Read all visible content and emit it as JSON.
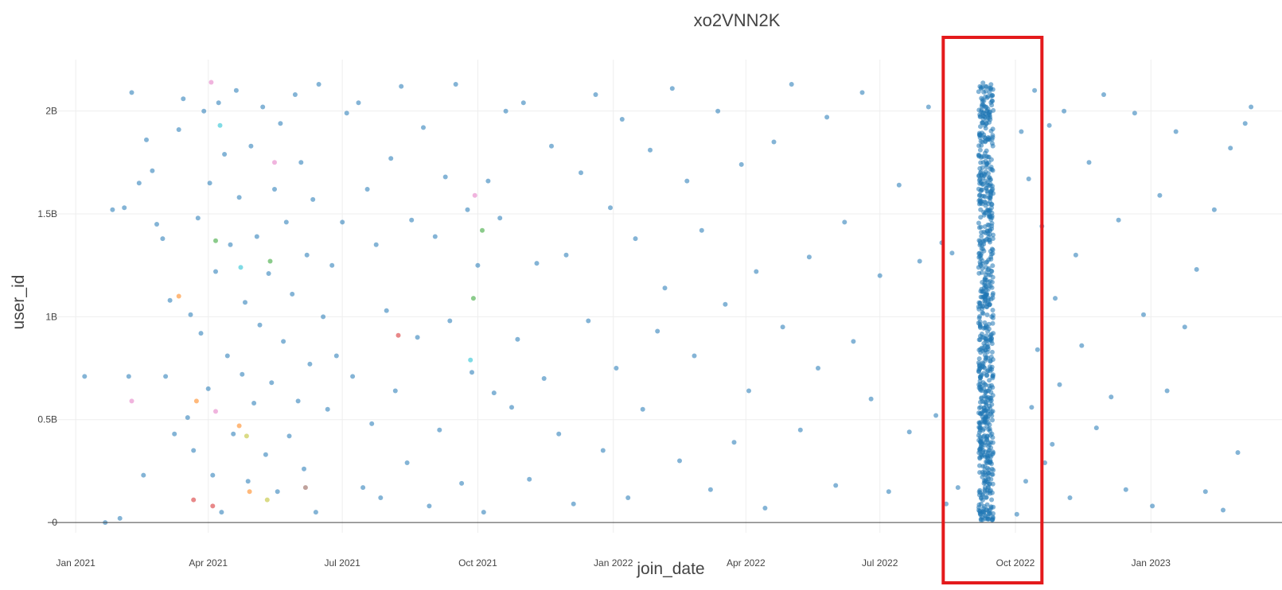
{
  "chart_data": {
    "type": "scatter",
    "title": "xo2VNN2K",
    "xlabel": "join_date",
    "ylabel": "user_id",
    "x_range": [
      "2020-12-13",
      "2023-03-31"
    ],
    "y_range": [
      -0.05,
      2.25
    ],
    "y_unit": "billions",
    "grid": true,
    "x_ticks": [
      {
        "date": "2021-01-01",
        "label": "Jan 2021"
      },
      {
        "date": "2021-04-01",
        "label": "Apr 2021"
      },
      {
        "date": "2021-07-01",
        "label": "Jul 2021"
      },
      {
        "date": "2021-10-01",
        "label": "Oct 2021"
      },
      {
        "date": "2022-01-01",
        "label": "Jan 2022"
      },
      {
        "date": "2022-04-01",
        "label": "Apr 2022"
      },
      {
        "date": "2022-07-01",
        "label": "Jul 2022"
      },
      {
        "date": "2022-10-01",
        "label": "Oct 2022"
      },
      {
        "date": "2023-01-01",
        "label": "Jan 2023"
      }
    ],
    "y_ticks": [
      {
        "value": 0,
        "label": "0"
      },
      {
        "value": 0.5,
        "label": "0.5B"
      },
      {
        "value": 1.0,
        "label": "1B"
      },
      {
        "value": 1.5,
        "label": "1.5B"
      },
      {
        "value": 2.0,
        "label": "2B"
      }
    ],
    "colors": {
      "main_series": "#1f77b4",
      "marker_opacity": 0.55,
      "highlight_box": "#e41a1c",
      "grid": "#eeeeee",
      "zero_line": "#444444"
    },
    "highlight_box": {
      "x_start": "2022-08-13",
      "x_end": "2022-10-19"
    },
    "series": [
      {
        "color": "#1f77b4",
        "points": [
          [
            "2021-01-07",
            0.71
          ],
          [
            "2021-01-21",
            0.0
          ],
          [
            "2021-01-26",
            1.52
          ],
          [
            "2021-01-31",
            0.02
          ],
          [
            "2021-02-03",
            1.53
          ],
          [
            "2021-02-06",
            0.71
          ],
          [
            "2021-02-08",
            2.09
          ],
          [
            "2021-02-13",
            1.65
          ],
          [
            "2021-02-16",
            0.23
          ],
          [
            "2021-02-18",
            1.86
          ],
          [
            "2021-02-22",
            1.71
          ],
          [
            "2021-02-25",
            1.45
          ],
          [
            "2021-03-01",
            1.38
          ],
          [
            "2021-03-03",
            0.71
          ],
          [
            "2021-03-06",
            1.08
          ],
          [
            "2021-03-09",
            0.43
          ],
          [
            "2021-03-12",
            1.91
          ],
          [
            "2021-03-15",
            2.06
          ],
          [
            "2021-03-18",
            0.51
          ],
          [
            "2021-03-20",
            1.01
          ],
          [
            "2021-03-22",
            0.35
          ],
          [
            "2021-03-25",
            1.48
          ],
          [
            "2021-03-27",
            0.92
          ],
          [
            "2021-03-29",
            2.0
          ],
          [
            "2021-04-01",
            0.65
          ],
          [
            "2021-04-02",
            1.65
          ],
          [
            "2021-04-04",
            0.23
          ],
          [
            "2021-04-06",
            1.22
          ],
          [
            "2021-04-08",
            2.04
          ],
          [
            "2021-04-10",
            0.05
          ],
          [
            "2021-04-12",
            1.79
          ],
          [
            "2021-04-14",
            0.81
          ],
          [
            "2021-04-16",
            1.35
          ],
          [
            "2021-04-18",
            0.43
          ],
          [
            "2021-04-20",
            2.1
          ],
          [
            "2021-04-22",
            1.58
          ],
          [
            "2021-04-24",
            0.72
          ],
          [
            "2021-04-26",
            1.07
          ],
          [
            "2021-04-28",
            0.2
          ],
          [
            "2021-04-30",
            1.83
          ],
          [
            "2021-05-02",
            0.58
          ],
          [
            "2021-05-04",
            1.39
          ],
          [
            "2021-05-06",
            0.96
          ],
          [
            "2021-05-08",
            2.02
          ],
          [
            "2021-05-10",
            0.33
          ],
          [
            "2021-05-12",
            1.21
          ],
          [
            "2021-05-14",
            0.68
          ],
          [
            "2021-05-16",
            1.62
          ],
          [
            "2021-05-18",
            0.15
          ],
          [
            "2021-05-20",
            1.94
          ],
          [
            "2021-05-22",
            0.88
          ],
          [
            "2021-05-24",
            1.46
          ],
          [
            "2021-05-26",
            0.42
          ],
          [
            "2021-05-28",
            1.11
          ],
          [
            "2021-05-30",
            2.08
          ],
          [
            "2021-06-01",
            0.59
          ],
          [
            "2021-06-03",
            1.75
          ],
          [
            "2021-06-05",
            0.26
          ],
          [
            "2021-06-07",
            1.3
          ],
          [
            "2021-06-09",
            0.77
          ],
          [
            "2021-06-11",
            1.57
          ],
          [
            "2021-06-13",
            0.05
          ],
          [
            "2021-06-15",
            2.13
          ],
          [
            "2021-06-18",
            1.0
          ],
          [
            "2021-06-21",
            0.55
          ],
          [
            "2021-06-24",
            1.25
          ],
          [
            "2021-06-27",
            0.81
          ],
          [
            "2021-07-01",
            1.46
          ],
          [
            "2021-07-04",
            1.99
          ],
          [
            "2021-07-08",
            0.71
          ],
          [
            "2021-07-12",
            2.04
          ],
          [
            "2021-07-15",
            0.17
          ],
          [
            "2021-07-18",
            1.62
          ],
          [
            "2021-07-21",
            0.48
          ],
          [
            "2021-07-24",
            1.35
          ],
          [
            "2021-07-27",
            0.12
          ],
          [
            "2021-07-31",
            1.03
          ],
          [
            "2021-08-03",
            1.77
          ],
          [
            "2021-08-06",
            0.64
          ],
          [
            "2021-08-10",
            2.12
          ],
          [
            "2021-08-14",
            0.29
          ],
          [
            "2021-08-17",
            1.47
          ],
          [
            "2021-08-21",
            0.9
          ],
          [
            "2021-08-25",
            1.92
          ],
          [
            "2021-08-29",
            0.08
          ],
          [
            "2021-09-02",
            1.39
          ],
          [
            "2021-09-05",
            0.45
          ],
          [
            "2021-09-09",
            1.68
          ],
          [
            "2021-09-12",
            0.98
          ],
          [
            "2021-09-16",
            2.13
          ],
          [
            "2021-09-20",
            0.19
          ],
          [
            "2021-09-24",
            1.52
          ],
          [
            "2021-09-27",
            0.73
          ],
          [
            "2021-10-01",
            1.25
          ],
          [
            "2021-10-05",
            0.05
          ],
          [
            "2021-10-08",
            1.66
          ],
          [
            "2021-10-12",
            0.63
          ],
          [
            "2021-10-16",
            1.48
          ],
          [
            "2021-10-20",
            2.0
          ],
          [
            "2021-10-24",
            0.56
          ],
          [
            "2021-10-28",
            0.89
          ],
          [
            "2021-11-01",
            2.04
          ],
          [
            "2021-11-05",
            0.21
          ],
          [
            "2021-11-10",
            1.26
          ],
          [
            "2021-11-15",
            0.7
          ],
          [
            "2021-11-20",
            1.83
          ],
          [
            "2021-11-25",
            0.43
          ],
          [
            "2021-11-30",
            1.3
          ],
          [
            "2021-12-05",
            0.09
          ],
          [
            "2021-12-10",
            1.7
          ],
          [
            "2021-12-15",
            0.98
          ],
          [
            "2021-12-20",
            2.08
          ],
          [
            "2021-12-25",
            0.35
          ],
          [
            "2021-12-30",
            1.53
          ],
          [
            "2022-01-03",
            0.75
          ],
          [
            "2022-01-07",
            1.96
          ],
          [
            "2022-01-11",
            0.12
          ],
          [
            "2022-01-16",
            1.38
          ],
          [
            "2022-01-21",
            0.55
          ],
          [
            "2022-01-26",
            1.81
          ],
          [
            "2022-01-31",
            0.93
          ],
          [
            "2022-02-05",
            1.14
          ],
          [
            "2022-02-10",
            2.11
          ],
          [
            "2022-02-15",
            0.3
          ],
          [
            "2022-02-20",
            1.66
          ],
          [
            "2022-02-25",
            0.81
          ],
          [
            "2022-03-02",
            1.42
          ],
          [
            "2022-03-08",
            0.16
          ],
          [
            "2022-03-13",
            2.0
          ],
          [
            "2022-03-18",
            1.06
          ],
          [
            "2022-03-24",
            0.39
          ],
          [
            "2022-03-29",
            1.74
          ],
          [
            "2022-04-03",
            0.64
          ],
          [
            "2022-04-08",
            1.22
          ],
          [
            "2022-04-14",
            0.07
          ],
          [
            "2022-04-20",
            1.85
          ],
          [
            "2022-04-26",
            0.95
          ],
          [
            "2022-05-02",
            2.13
          ],
          [
            "2022-05-08",
            0.45
          ],
          [
            "2022-05-14",
            1.29
          ],
          [
            "2022-05-20",
            0.75
          ],
          [
            "2022-05-26",
            1.97
          ],
          [
            "2022-06-01",
            0.18
          ],
          [
            "2022-06-07",
            1.46
          ],
          [
            "2022-06-13",
            0.88
          ],
          [
            "2022-06-19",
            2.09
          ],
          [
            "2022-06-25",
            0.6
          ],
          [
            "2022-07-01",
            1.2
          ],
          [
            "2022-07-07",
            0.15
          ],
          [
            "2022-07-14",
            1.64
          ],
          [
            "2022-07-21",
            0.44
          ],
          [
            "2022-07-28",
            1.27
          ],
          [
            "2022-08-03",
            2.02
          ],
          [
            "2022-08-08",
            0.52
          ],
          [
            "2022-08-12",
            1.36
          ],
          [
            "2022-08-15",
            0.09
          ],
          [
            "2022-08-19",
            1.31
          ],
          [
            "2022-08-23",
            0.17
          ],
          [
            "2022-10-02",
            0.04
          ],
          [
            "2022-10-05",
            1.9
          ],
          [
            "2022-10-08",
            0.2
          ],
          [
            "2022-10-10",
            1.67
          ],
          [
            "2022-10-12",
            0.56
          ],
          [
            "2022-10-14",
            2.1
          ],
          [
            "2022-10-16",
            0.84
          ],
          [
            "2022-10-19",
            1.44
          ],
          [
            "2022-10-21",
            0.29
          ],
          [
            "2022-10-24",
            1.93
          ],
          [
            "2022-10-26",
            0.38
          ],
          [
            "2022-10-28",
            1.09
          ],
          [
            "2022-10-31",
            0.67
          ],
          [
            "2022-11-03",
            2.0
          ],
          [
            "2022-11-07",
            0.12
          ],
          [
            "2022-11-11",
            1.3
          ],
          [
            "2022-11-15",
            0.86
          ],
          [
            "2022-11-20",
            1.75
          ],
          [
            "2022-11-25",
            0.46
          ],
          [
            "2022-11-30",
            2.08
          ],
          [
            "2022-12-05",
            0.61
          ],
          [
            "2022-12-10",
            1.47
          ],
          [
            "2022-12-15",
            0.16
          ],
          [
            "2022-12-21",
            1.99
          ],
          [
            "2022-12-27",
            1.01
          ],
          [
            "2023-01-02",
            0.08
          ],
          [
            "2023-01-07",
            1.59
          ],
          [
            "2023-01-12",
            0.64
          ],
          [
            "2023-01-18",
            1.9
          ],
          [
            "2023-01-24",
            0.95
          ],
          [
            "2023-02-01",
            1.23
          ],
          [
            "2023-02-07",
            0.15
          ],
          [
            "2023-02-13",
            1.52
          ],
          [
            "2023-02-19",
            0.06
          ],
          [
            "2023-02-24",
            1.82
          ],
          [
            "2023-03-01",
            0.34
          ],
          [
            "2023-03-06",
            1.94
          ],
          [
            "2023-03-10",
            2.02
          ]
        ]
      },
      {
        "color": "#ff7f0e",
        "points": [
          [
            "2021-03-12",
            1.1
          ],
          [
            "2021-03-24",
            0.59
          ],
          [
            "2021-04-22",
            0.47
          ],
          [
            "2021-04-29",
            0.15
          ]
        ]
      },
      {
        "color": "#d62728",
        "points": [
          [
            "2021-03-22",
            0.11
          ],
          [
            "2021-04-04",
            0.08
          ],
          [
            "2021-08-08",
            0.91
          ]
        ]
      },
      {
        "color": "#2ca02c",
        "points": [
          [
            "2021-04-06",
            1.37
          ],
          [
            "2021-05-13",
            1.27
          ],
          [
            "2021-09-28",
            1.09
          ],
          [
            "2021-10-04",
            1.42
          ]
        ]
      },
      {
        "color": "#17becf",
        "points": [
          [
            "2021-04-09",
            1.93
          ],
          [
            "2021-04-23",
            1.24
          ],
          [
            "2021-09-26",
            0.79
          ]
        ]
      },
      {
        "color": "#e377c2",
        "points": [
          [
            "2021-02-08",
            0.59
          ],
          [
            "2021-04-03",
            2.14
          ],
          [
            "2021-04-06",
            0.54
          ],
          [
            "2021-05-16",
            1.75
          ],
          [
            "2021-09-29",
            1.59
          ]
        ]
      },
      {
        "color": "#bcbd22",
        "points": [
          [
            "2021-04-27",
            0.42
          ],
          [
            "2021-05-11",
            0.11
          ]
        ]
      },
      {
        "color": "#8c564b",
        "points": [
          [
            "2021-06-06",
            0.17
          ]
        ]
      }
    ]
  }
}
